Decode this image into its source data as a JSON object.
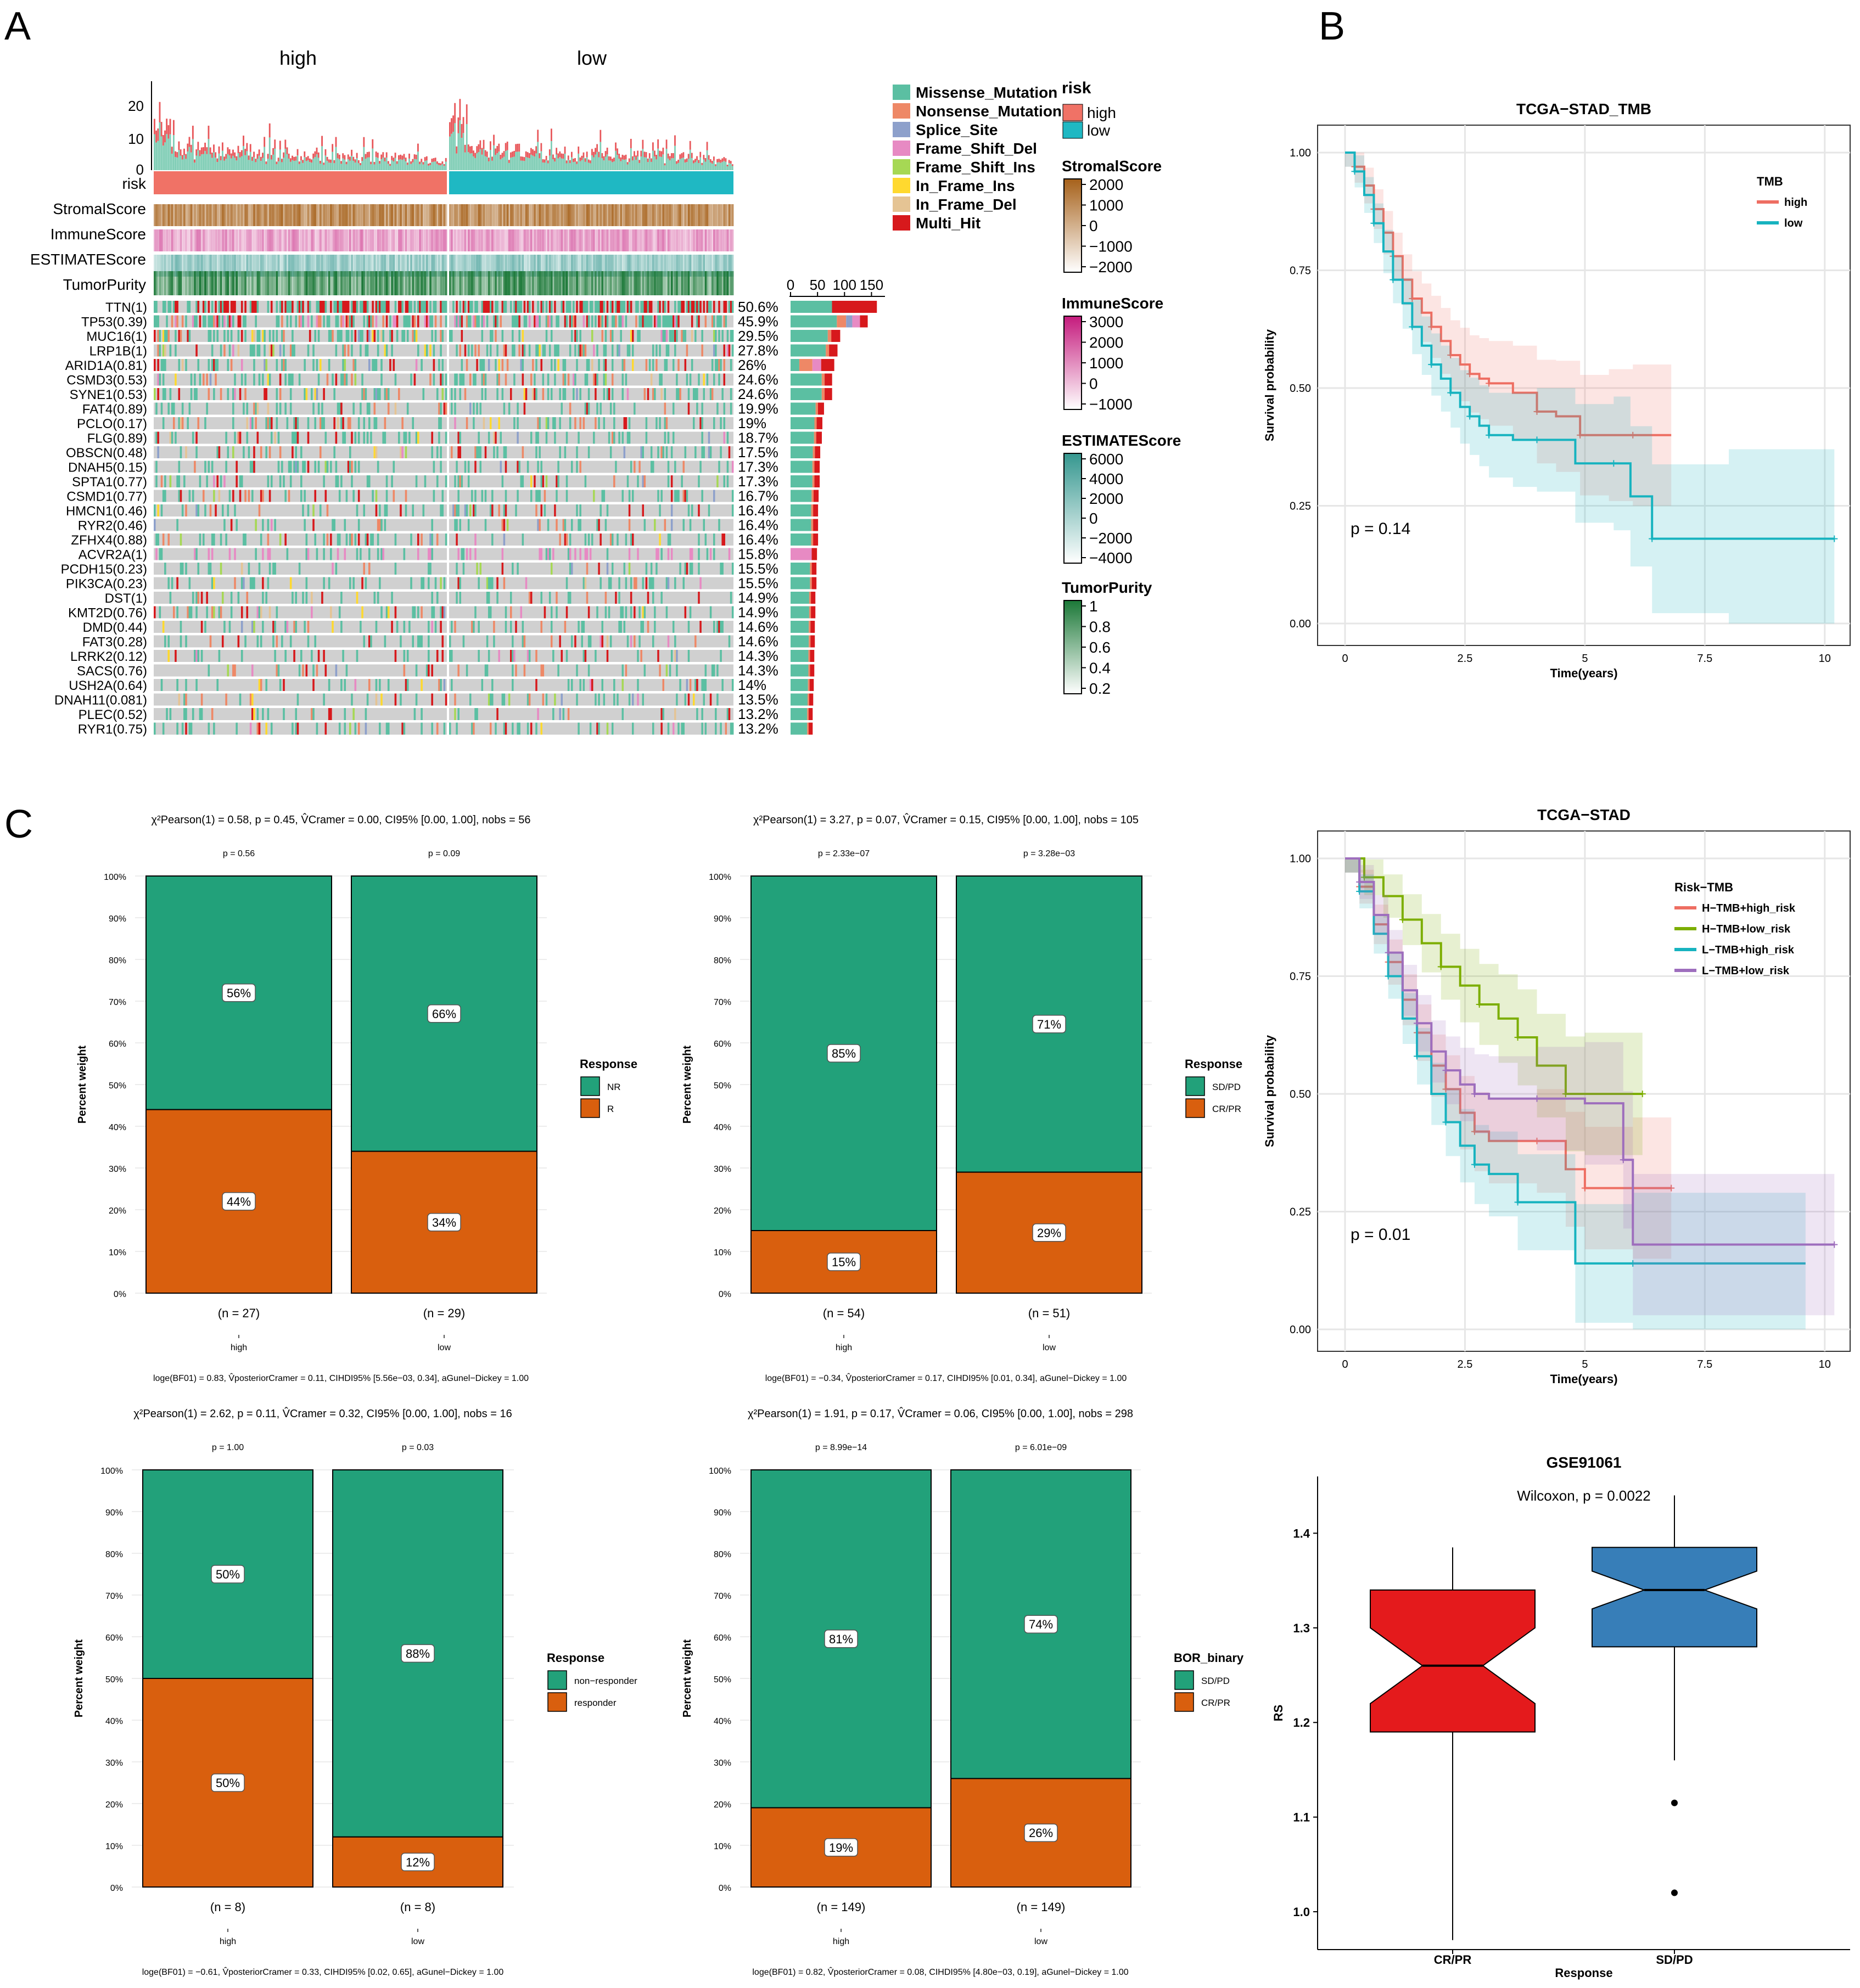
{
  "panel_letters": [
    "A",
    "B",
    "C"
  ],
  "chart_data": [
    {
      "id": "A",
      "type": "heatmap",
      "title": "Oncoplot",
      "groups": [
        "high",
        "low"
      ],
      "tmb_axis_ticks": [
        "0",
        "10",
        "20"
      ],
      "annotation_rows": [
        "risk",
        "StromalScore",
        "ImmuneScore",
        "ESTIMATEScore",
        "TumorPurity"
      ],
      "genes": [
        {
          "label": "TTN(1)",
          "pct": "50.6%",
          "count": 160
        },
        {
          "label": "TP53(0.39)",
          "pct": "45.9%",
          "count": 143
        },
        {
          "label": "MUC16(1)",
          "pct": "29.5%",
          "count": 92
        },
        {
          "label": "LRP1B(1)",
          "pct": "27.8%",
          "count": 87
        },
        {
          "label": "ARID1A(0.81)",
          "pct": "26%",
          "count": 81
        },
        {
          "label": "CSMD3(0.53)",
          "pct": "24.6%",
          "count": 77
        },
        {
          "label": "SYNE1(0.53)",
          "pct": "24.6%",
          "count": 77
        },
        {
          "label": "FAT4(0.89)",
          "pct": "19.9%",
          "count": 62
        },
        {
          "label": "PCLO(0.17)",
          "pct": "19%",
          "count": 59
        },
        {
          "label": "FLG(0.89)",
          "pct": "18.7%",
          "count": 58
        },
        {
          "label": "OBSCN(0.48)",
          "pct": "17.5%",
          "count": 55
        },
        {
          "label": "DNAH5(0.15)",
          "pct": "17.3%",
          "count": 54
        },
        {
          "label": "SPTA1(0.77)",
          "pct": "17.3%",
          "count": 54
        },
        {
          "label": "CSMD1(0.77)",
          "pct": "16.7%",
          "count": 52
        },
        {
          "label": "HMCN1(0.46)",
          "pct": "16.4%",
          "count": 51
        },
        {
          "label": "RYR2(0.46)",
          "pct": "16.4%",
          "count": 51
        },
        {
          "label": "ZFHX4(0.88)",
          "pct": "16.4%",
          "count": 51
        },
        {
          "label": "ACVR2A(1)",
          "pct": "15.8%",
          "count": 49
        },
        {
          "label": "PCDH15(0.23)",
          "pct": "15.5%",
          "count": 48
        },
        {
          "label": "PIK3CA(0.23)",
          "pct": "15.5%",
          "count": 48
        },
        {
          "label": "DST(1)",
          "pct": "14.9%",
          "count": 46
        },
        {
          "label": "KMT2D(0.76)",
          "pct": "14.9%",
          "count": 46
        },
        {
          "label": "DMD(0.44)",
          "pct": "14.6%",
          "count": 45
        },
        {
          "label": "FAT3(0.28)",
          "pct": "14.6%",
          "count": 45
        },
        {
          "label": "LRRK2(0.12)",
          "pct": "14.3%",
          "count": 44
        },
        {
          "label": "SACS(0.76)",
          "pct": "14.3%",
          "count": 44
        },
        {
          "label": "USH2A(0.64)",
          "pct": "14%",
          "count": 43
        },
        {
          "label": "DNAH11(0.081)",
          "pct": "13.5%",
          "count": 42
        },
        {
          "label": "PLEC(0.52)",
          "pct": "13.2%",
          "count": 41
        },
        {
          "label": "RYR1(0.75)",
          "pct": "13.2%",
          "count": 41
        }
      ],
      "bar_axis_ticks": [
        "0",
        "50",
        "100",
        "150"
      ],
      "bar_axis_max": 175,
      "mutation_legend": [
        {
          "name": "Missense_Mutation",
          "color": "#5bbfa2"
        },
        {
          "name": "Nonsense_Mutation",
          "color": "#ee8866"
        },
        {
          "name": "Splice_Site",
          "color": "#8da0cb"
        },
        {
          "name": "Frame_Shift_Del",
          "color": "#e78ac3"
        },
        {
          "name": "Frame_Shift_Ins",
          "color": "#a6d854"
        },
        {
          "name": "In_Frame_Ins",
          "color": "#ffd92f"
        },
        {
          "name": "In_Frame_Del",
          "color": "#e5c494"
        },
        {
          "name": "Multi_Hit",
          "color": "#d7191c"
        }
      ],
      "risk_legend": {
        "title": "risk",
        "items": [
          {
            "name": "high",
            "color": "#f07266"
          },
          {
            "name": "low",
            "color": "#1fb8c3"
          }
        ]
      },
      "score_legends": [
        {
          "title": "StromalScore",
          "ticks": [
            "2000",
            "1000",
            "0",
            "−1000",
            "−2000"
          ],
          "color": "#a6611a"
        },
        {
          "title": "ImmuneScore",
          "ticks": [
            "3000",
            "2000",
            "1000",
            "0",
            "−1000"
          ],
          "color": "#c51b7d"
        },
        {
          "title": "ESTIMATEScore",
          "ticks": [
            "6000",
            "4000",
            "2000",
            "0",
            "−2000",
            "−4000"
          ],
          "color": "#35978f"
        },
        {
          "title": "TumorPurity",
          "ticks": [
            "1",
            "0.8",
            "0.6",
            "0.4",
            "0.2"
          ],
          "color": "#1b7837"
        }
      ]
    },
    {
      "id": "B1",
      "type": "line",
      "title": "TCGA−STAD_TMB",
      "xlabel": "Time(years)",
      "ylabel": "Survival probability",
      "xlim": [
        0,
        10.3
      ],
      "ylim": [
        0,
        1.0
      ],
      "xticks": [
        "0",
        "2.5",
        "5",
        "7.5",
        "10"
      ],
      "yticks": [
        "0.00",
        "0.25",
        "0.50",
        "0.75",
        "1.00"
      ],
      "legend_title": "TMB",
      "pvalue": "p = 0.14",
      "series": [
        {
          "name": "high",
          "color": "#ee6e62",
          "x": [
            0,
            0.2,
            0.4,
            0.6,
            0.8,
            1.0,
            1.2,
            1.4,
            1.6,
            1.8,
            2.0,
            2.2,
            2.4,
            2.6,
            2.8,
            3.0,
            3.5,
            4.0,
            4.4,
            4.9,
            5.5,
            6.0,
            6.8
          ],
          "y": [
            1.0,
            0.97,
            0.93,
            0.88,
            0.83,
            0.78,
            0.73,
            0.69,
            0.66,
            0.63,
            0.6,
            0.57,
            0.55,
            0.53,
            0.52,
            0.51,
            0.49,
            0.45,
            0.44,
            0.4,
            0.4,
            0.4,
            0.4
          ]
        },
        {
          "name": "low",
          "color": "#17b3bf",
          "x": [
            0,
            0.2,
            0.4,
            0.6,
            0.8,
            1.0,
            1.2,
            1.4,
            1.6,
            1.8,
            2.0,
            2.2,
            2.4,
            2.6,
            2.8,
            3.0,
            3.5,
            4.0,
            4.8,
            5.6,
            5.95,
            6.4,
            8.0,
            10.2
          ],
          "y": [
            1.0,
            0.96,
            0.91,
            0.85,
            0.79,
            0.73,
            0.68,
            0.63,
            0.59,
            0.55,
            0.52,
            0.49,
            0.46,
            0.44,
            0.42,
            0.4,
            0.39,
            0.39,
            0.34,
            0.34,
            0.27,
            0.18,
            0.18,
            0.18
          ]
        }
      ]
    },
    {
      "id": "B2",
      "type": "line",
      "title": "TCGA−STAD",
      "xlabel": "Time(years)",
      "ylabel": "Survival probability",
      "xlim": [
        0,
        10.3
      ],
      "ylim": [
        0,
        1.0
      ],
      "xticks": [
        "0",
        "2.5",
        "5",
        "7.5",
        "10"
      ],
      "yticks": [
        "0.00",
        "0.25",
        "0.50",
        "0.75",
        "1.00"
      ],
      "legend_title": "Risk−TMB",
      "pvalue": "p = 0.01",
      "series": [
        {
          "name": "H−TMB+high_risk",
          "color": "#ee6e62",
          "x": [
            0,
            0.3,
            0.6,
            0.9,
            1.2,
            1.5,
            1.8,
            2.1,
            2.4,
            2.7,
            3.0,
            4.0,
            4.6,
            5.0,
            6.0,
            6.8
          ],
          "y": [
            1.0,
            0.94,
            0.86,
            0.78,
            0.7,
            0.63,
            0.56,
            0.51,
            0.46,
            0.42,
            0.4,
            0.4,
            0.34,
            0.3,
            0.3,
            0.3
          ]
        },
        {
          "name": "H−TMB+low_risk",
          "color": "#7cae00",
          "x": [
            0,
            0.4,
            0.8,
            1.2,
            1.6,
            2.0,
            2.4,
            2.8,
            3.2,
            3.6,
            4.0,
            4.6,
            5.0,
            6.2
          ],
          "y": [
            1.0,
            0.96,
            0.92,
            0.87,
            0.82,
            0.77,
            0.73,
            0.69,
            0.66,
            0.62,
            0.56,
            0.5,
            0.5,
            0.5
          ]
        },
        {
          "name": "L−TMB+high_risk",
          "color": "#17b3bf",
          "x": [
            0,
            0.3,
            0.6,
            0.9,
            1.2,
            1.5,
            1.8,
            2.1,
            2.4,
            2.7,
            3.0,
            3.6,
            4.8,
            6.0,
            9.6
          ],
          "y": [
            1.0,
            0.93,
            0.84,
            0.75,
            0.66,
            0.58,
            0.5,
            0.44,
            0.39,
            0.35,
            0.33,
            0.27,
            0.14,
            0.14,
            0.14
          ]
        },
        {
          "name": "L−TMB+low_risk",
          "color": "#9e6ebd",
          "x": [
            0,
            0.3,
            0.6,
            0.9,
            1.2,
            1.5,
            1.8,
            2.1,
            2.4,
            2.7,
            3.0,
            4.0,
            5.0,
            5.8,
            6.0,
            10.2
          ],
          "y": [
            1.0,
            0.95,
            0.88,
            0.8,
            0.72,
            0.65,
            0.59,
            0.55,
            0.52,
            0.5,
            0.49,
            0.49,
            0.48,
            0.36,
            0.18,
            0.18
          ]
        }
      ]
    },
    {
      "id": "C1",
      "type": "bar",
      "stacked": true,
      "header": "χ²Pearson(1) = 0.58, p = 0.45, V̂Cramer = 0.00, CI95% [0.00, 1.00], nobs = 56",
      "footer": "loge(BF01) = 0.83, V̂posteriorCramer = 0.11, CIHDI95% [5.56e−03, 0.34], aGunel−Dickey = 1.00",
      "ylabel": "Percent weight",
      "categories": [
        "high",
        "low"
      ],
      "counts": [
        "(n = 27)",
        "(n = 29)"
      ],
      "pvals": [
        "p = 0.56",
        "p = 0.09"
      ],
      "legend_title": "Response",
      "series": [
        {
          "name": "NR",
          "color": "#22a17a",
          "values": [
            56,
            66
          ],
          "labels": [
            "56%",
            "66%"
          ]
        },
        {
          "name": "R",
          "color": "#d95f0e",
          "values": [
            44,
            34
          ],
          "labels": [
            "44%",
            "34%"
          ]
        }
      ],
      "yticks": [
        "0%",
        "10%",
        "20%",
        "30%",
        "40%",
        "50%",
        "60%",
        "70%",
        "80%",
        "90%",
        "100%"
      ]
    },
    {
      "id": "C2",
      "type": "bar",
      "stacked": true,
      "header": "χ²Pearson(1) = 3.27, p = 0.07, V̂Cramer = 0.15, CI95% [0.00, 1.00], nobs = 105",
      "footer": "loge(BF01) = −0.34, V̂posteriorCramer = 0.17, CIHDI95% [0.01, 0.34], aGunel−Dickey = 1.00",
      "ylabel": "Percent weight",
      "categories": [
        "high",
        "low"
      ],
      "counts": [
        "(n = 54)",
        "(n = 51)"
      ],
      "pvals": [
        "p = 2.33e−07",
        "p = 3.28e−03"
      ],
      "legend_title": "Response",
      "series": [
        {
          "name": "SD/PD",
          "color": "#22a17a",
          "values": [
            85,
            71
          ],
          "labels": [
            "85%",
            "71%"
          ]
        },
        {
          "name": "CR/PR",
          "color": "#d95f0e",
          "values": [
            15,
            29
          ],
          "labels": [
            "15%",
            "29%"
          ]
        }
      ],
      "yticks": [
        "0%",
        "10%",
        "20%",
        "30%",
        "40%",
        "50%",
        "60%",
        "70%",
        "80%",
        "90%",
        "100%"
      ]
    },
    {
      "id": "C3",
      "type": "bar",
      "stacked": true,
      "header": "χ²Pearson(1) = 2.62, p = 0.11, V̂Cramer = 0.32, CI95% [0.00, 1.00], nobs = 16",
      "footer": "loge(BF01) = −0.61, V̂posteriorCramer = 0.33, CIHDI95% [0.02, 0.65], aGunel−Dickey = 1.00",
      "ylabel": "Percent weight",
      "categories": [
        "high",
        "low"
      ],
      "counts": [
        "(n = 8)",
        "(n = 8)"
      ],
      "pvals": [
        "p = 1.00",
        "p = 0.03"
      ],
      "legend_title": "Response",
      "series": [
        {
          "name": "non−responder",
          "color": "#22a17a",
          "values": [
            50,
            88
          ],
          "labels": [
            "50%",
            "88%"
          ]
        },
        {
          "name": "responder",
          "color": "#d95f0e",
          "values": [
            50,
            12
          ],
          "labels": [
            "50%",
            "12%"
          ]
        }
      ],
      "yticks": [
        "0%",
        "10%",
        "20%",
        "30%",
        "40%",
        "50%",
        "60%",
        "70%",
        "80%",
        "90%",
        "100%"
      ]
    },
    {
      "id": "C4",
      "type": "bar",
      "stacked": true,
      "header": "χ²Pearson(1) = 1.91, p = 0.17, V̂Cramer = 0.06, CI95% [0.00, 1.00], nobs = 298",
      "footer": "loge(BF01) = 0.82, V̂posteriorCramer = 0.08, CIHDI95% [4.80e−03, 0.19], aGunel−Dickey = 1.00",
      "ylabel": "Percent weight",
      "categories": [
        "high",
        "low"
      ],
      "counts": [
        "(n = 149)",
        "(n = 149)"
      ],
      "pvals": [
        "p = 8.99e−14",
        "p = 6.01e−09"
      ],
      "legend_title": "BOR_binary",
      "series": [
        {
          "name": "SD/PD",
          "color": "#22a17a",
          "values": [
            81,
            74
          ],
          "labels": [
            "81%",
            "74%"
          ]
        },
        {
          "name": "CR/PR",
          "color": "#d95f0e",
          "values": [
            19,
            26
          ],
          "labels": [
            "19%",
            "26%"
          ]
        }
      ],
      "yticks": [
        "0%",
        "10%",
        "20%",
        "30%",
        "40%",
        "50%",
        "60%",
        "70%",
        "80%",
        "90%",
        "100%"
      ]
    },
    {
      "id": "D",
      "type": "box",
      "title": "GSE91061",
      "subtitle": "Wilcoxon, p = 0.0022",
      "xlabel": "Response",
      "ylabel": "RS",
      "ylim": [
        0.96,
        1.46
      ],
      "yticks": [
        "1.0",
        "1.1",
        "1.2",
        "1.3",
        "1.4"
      ],
      "groups": [
        {
          "name": "CR/PR",
          "color": "#e41a1c",
          "q1": 1.19,
          "median": 1.26,
          "q3": 1.34,
          "whisker_low": 0.97,
          "whisker_high": 1.385,
          "notch_low": 1.22,
          "notch_high": 1.3,
          "outliers": []
        },
        {
          "name": "SD/PD",
          "color": "#377eb8",
          "q1": 1.28,
          "median": 1.34,
          "q3": 1.385,
          "whisker_low": 1.16,
          "whisker_high": 1.44,
          "notch_low": 1.32,
          "notch_high": 1.36,
          "outliers": [
            1.115,
            1.02
          ]
        }
      ]
    }
  ]
}
